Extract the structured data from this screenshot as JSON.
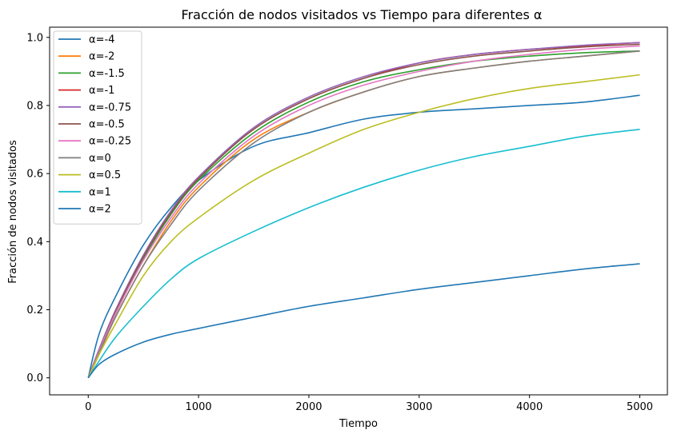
{
  "chart_data": {
    "type": "line",
    "title": "Fracción de nodos visitados vs Tiempo para diferentes α",
    "xlabel": "Tiempo",
    "ylabel": "Fracción de nodos visitados",
    "xlim": [
      -350,
      5250
    ],
    "ylim": [
      -0.05,
      1.03
    ],
    "xticks": [
      0,
      1000,
      2000,
      3000,
      4000,
      5000
    ],
    "yticks": [
      0.0,
      0.2,
      0.4,
      0.6,
      0.8,
      1.0
    ],
    "xtick_labels": [
      "0",
      "1000",
      "2000",
      "3000",
      "4000",
      "5000"
    ],
    "ytick_labels": [
      "0.0",
      "0.2",
      "0.4",
      "0.6",
      "0.8",
      "1.0"
    ],
    "grid": false,
    "legend_position": "top-left",
    "x": [
      0,
      100,
      250,
      500,
      750,
      1000,
      1500,
      2000,
      2500,
      3000,
      3500,
      4000,
      4500,
      5000
    ],
    "series": [
      {
        "name": "α=-4",
        "color": "#1f77b4",
        "values": [
          0.0,
          0.13,
          0.24,
          0.39,
          0.5,
          0.58,
          0.68,
          0.72,
          0.76,
          0.78,
          0.79,
          0.8,
          0.81,
          0.83
        ]
      },
      {
        "name": "α=-2",
        "color": "#ff7f0e",
        "values": [
          0.0,
          0.07,
          0.18,
          0.33,
          0.46,
          0.56,
          0.7,
          0.78,
          0.84,
          0.885,
          0.91,
          0.93,
          0.945,
          0.96
        ]
      },
      {
        "name": "α=-1.5",
        "color": "#2ca02c",
        "values": [
          0.0,
          0.08,
          0.19,
          0.35,
          0.48,
          0.58,
          0.72,
          0.81,
          0.87,
          0.905,
          0.93,
          0.945,
          0.955,
          0.96
        ]
      },
      {
        "name": "α=-1",
        "color": "#d62728",
        "values": [
          0.0,
          0.085,
          0.2,
          0.36,
          0.49,
          0.59,
          0.73,
          0.82,
          0.88,
          0.925,
          0.95,
          0.965,
          0.975,
          0.985
        ]
      },
      {
        "name": "α=-0.75",
        "color": "#9467bd",
        "values": [
          0.0,
          0.085,
          0.2,
          0.36,
          0.49,
          0.59,
          0.735,
          0.825,
          0.885,
          0.925,
          0.95,
          0.965,
          0.977,
          0.985
        ]
      },
      {
        "name": "α=-0.5",
        "color": "#8c564b",
        "values": [
          0.0,
          0.08,
          0.195,
          0.355,
          0.485,
          0.585,
          0.73,
          0.82,
          0.88,
          0.92,
          0.945,
          0.96,
          0.972,
          0.98
        ]
      },
      {
        "name": "α=-0.25",
        "color": "#e377c2",
        "values": [
          0.0,
          0.08,
          0.19,
          0.345,
          0.47,
          0.57,
          0.71,
          0.8,
          0.86,
          0.9,
          0.93,
          0.95,
          0.965,
          0.975
        ]
      },
      {
        "name": "α=0",
        "color": "#7f7f7f",
        "values": [
          0.0,
          0.075,
          0.18,
          0.33,
          0.45,
          0.55,
          0.69,
          0.78,
          0.84,
          0.885,
          0.91,
          0.93,
          0.945,
          0.96
        ]
      },
      {
        "name": "α=0.5",
        "color": "#bcbd22",
        "values": [
          0.0,
          0.07,
          0.16,
          0.3,
          0.4,
          0.47,
          0.58,
          0.66,
          0.73,
          0.78,
          0.82,
          0.85,
          0.87,
          0.89
        ]
      },
      {
        "name": "α=1",
        "color": "#17becf",
        "values": [
          0.0,
          0.05,
          0.12,
          0.21,
          0.29,
          0.35,
          0.43,
          0.5,
          0.56,
          0.61,
          0.65,
          0.68,
          0.71,
          0.73
        ]
      },
      {
        "name": "α=2",
        "color": "#1f77b4",
        "values": [
          0.0,
          0.04,
          0.07,
          0.105,
          0.128,
          0.145,
          0.178,
          0.21,
          0.235,
          0.26,
          0.28,
          0.3,
          0.32,
          0.335
        ]
      }
    ]
  }
}
